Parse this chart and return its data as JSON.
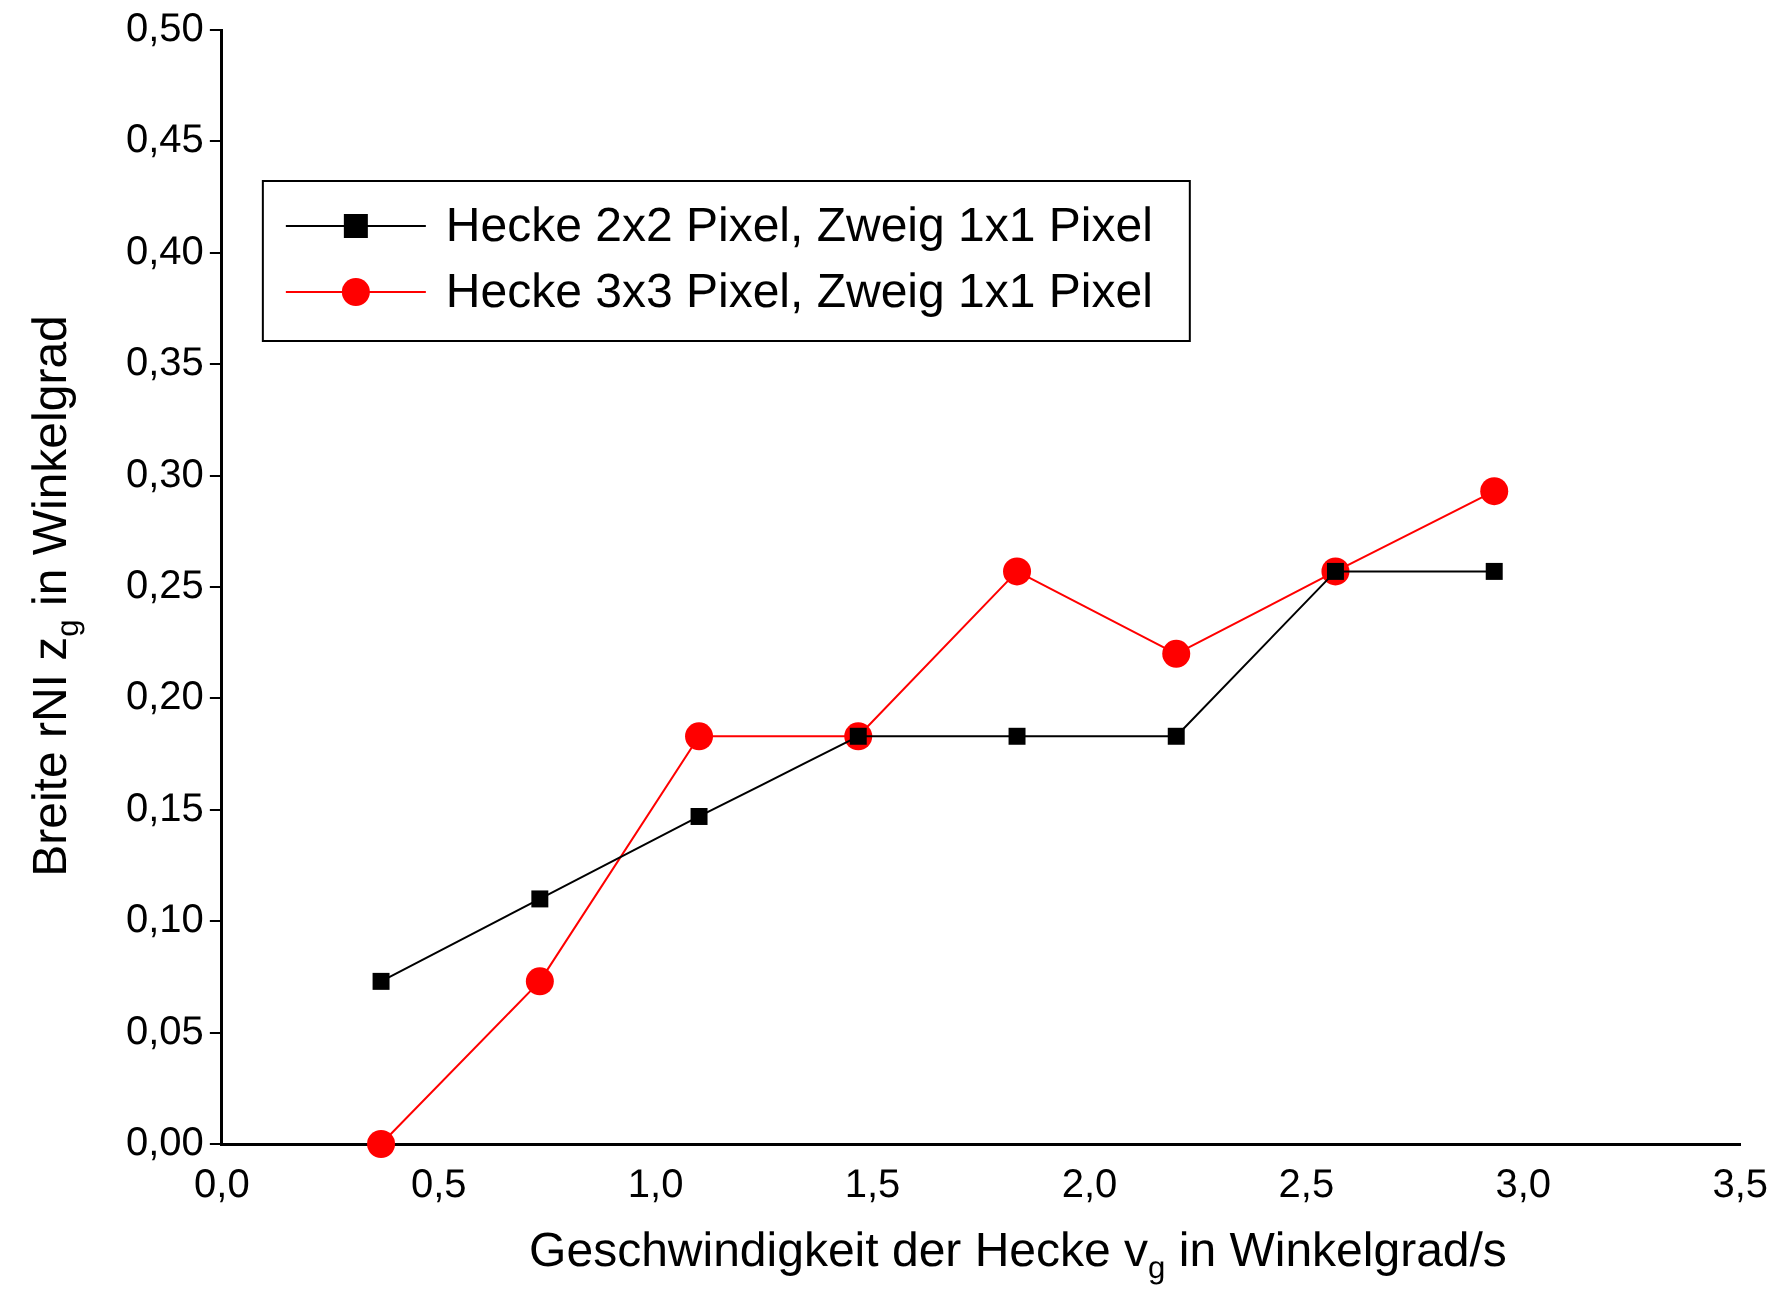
{
  "chart_data": {
    "type": "line",
    "xlabel": "Geschwindigkeit der Hecke v$_{g}$ in Winkelgrad/s",
    "ylabel": "Breite rNI z$_{g}$ in Winkelgrad",
    "x": [
      0.367,
      0.733,
      1.1,
      1.467,
      1.833,
      2.2,
      2.567,
      2.933
    ],
    "series": [
      {
        "name": "Hecke 2x2 Pixel, Zweig 1x1 Pixel",
        "color": "#000000",
        "marker": "square",
        "values": [
          0.073,
          0.11,
          0.147,
          0.183,
          0.183,
          0.183,
          0.257,
          0.257
        ]
      },
      {
        "name": "Hecke 3x3 Pixel, Zweig 1x1 Pixel",
        "color": "#ff0000",
        "marker": "circle",
        "values": [
          0,
          0.073,
          0.183,
          0.183,
          0.257,
          0.22,
          0.257,
          0.293
        ]
      }
    ],
    "xlim": [
      0,
      3.5
    ],
    "xticks": [
      {
        "value": 0,
        "label": "0,0"
      },
      {
        "value": 0.5,
        "label": "0,5"
      },
      {
        "value": 1,
        "label": "1,0"
      },
      {
        "value": 1.5,
        "label": "1,5"
      },
      {
        "value": 2,
        "label": "2,0"
      },
      {
        "value": 2.5,
        "label": "2,5"
      },
      {
        "value": 3,
        "label": "3,0"
      },
      {
        "value": 3.5,
        "label": "3,5"
      }
    ],
    "ylim": [
      0,
      0.5
    ],
    "yticks": [
      {
        "value": 0,
        "label": "0,00"
      },
      {
        "value": 0.05,
        "label": "0,05"
      },
      {
        "value": 0.1,
        "label": "0,10"
      },
      {
        "value": 0.15,
        "label": "0,15"
      },
      {
        "value": 0.2,
        "label": "0,20"
      },
      {
        "value": 0.25,
        "label": "0,25"
      },
      {
        "value": 0.3,
        "label": "0,30"
      },
      {
        "value": 0.35,
        "label": "0,35"
      },
      {
        "value": 0.4,
        "label": "0,40"
      },
      {
        "value": 0.45,
        "label": "0,45"
      },
      {
        "value": 0.5,
        "label": "0,50"
      }
    ],
    "grid": false,
    "legend": "top left",
    "line_style": "solid"
  }
}
